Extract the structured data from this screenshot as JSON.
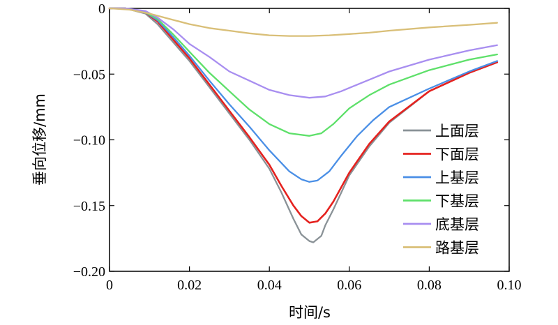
{
  "chart_data": {
    "type": "line",
    "title": "",
    "xlabel": "时间/s",
    "ylabel": "垂向位移/mm",
    "xlim": [
      0,
      0.1
    ],
    "ylim": [
      -0.2,
      0
    ],
    "xticks": [
      0,
      0.02,
      0.04,
      0.06,
      0.08,
      0.1
    ],
    "xtick_labels": [
      "0",
      "0.02",
      "0.04",
      "0.06",
      "0.08",
      "0.10"
    ],
    "yticks": [
      0,
      -0.05,
      -0.1,
      -0.15,
      -0.2
    ],
    "ytick_labels": [
      "0",
      "−0.05",
      "−0.10",
      "−0.15",
      "−0.20"
    ],
    "grid": false,
    "legend_position": "right",
    "series": [
      {
        "name": "上面层",
        "color": "#8a9297",
        "x": [
          0,
          0.004,
          0.009,
          0.012,
          0.016,
          0.02,
          0.025,
          0.03,
          0.035,
          0.04,
          0.043,
          0.046,
          0.048,
          0.05,
          0.051,
          0.053,
          0.054,
          0.056,
          0.06,
          0.065,
          0.07,
          0.08,
          0.09,
          0.097
        ],
        "y": [
          0,
          0,
          -0.004,
          -0.012,
          -0.026,
          -0.04,
          -0.06,
          -0.08,
          -0.1,
          -0.122,
          -0.14,
          -0.16,
          -0.172,
          -0.177,
          -0.178,
          -0.173,
          -0.165,
          -0.153,
          -0.127,
          -0.105,
          -0.087,
          -0.063,
          -0.049,
          -0.041
        ]
      },
      {
        "name": "下面层",
        "color": "#e5221f",
        "x": [
          0,
          0.004,
          0.009,
          0.012,
          0.016,
          0.02,
          0.025,
          0.03,
          0.035,
          0.04,
          0.043,
          0.046,
          0.048,
          0.05,
          0.052,
          0.054,
          0.056,
          0.06,
          0.065,
          0.07,
          0.08,
          0.09,
          0.097
        ],
        "y": [
          0,
          0,
          -0.003,
          -0.01,
          -0.024,
          -0.038,
          -0.058,
          -0.078,
          -0.098,
          -0.119,
          -0.135,
          -0.15,
          -0.158,
          -0.163,
          -0.162,
          -0.156,
          -0.147,
          -0.125,
          -0.103,
          -0.086,
          -0.063,
          -0.049,
          -0.041
        ]
      },
      {
        "name": "上基层",
        "color": "#4a8fe6",
        "x": [
          0,
          0.004,
          0.009,
          0.012,
          0.016,
          0.02,
          0.025,
          0.03,
          0.035,
          0.04,
          0.045,
          0.048,
          0.05,
          0.052,
          0.055,
          0.058,
          0.062,
          0.066,
          0.07,
          0.08,
          0.09,
          0.097
        ],
        "y": [
          0,
          0,
          -0.003,
          -0.009,
          -0.022,
          -0.036,
          -0.055,
          -0.073,
          -0.09,
          -0.108,
          -0.124,
          -0.13,
          -0.132,
          -0.131,
          -0.124,
          -0.112,
          -0.097,
          -0.085,
          -0.075,
          -0.061,
          -0.048,
          -0.04
        ]
      },
      {
        "name": "下基层",
        "color": "#5ee06a",
        "x": [
          0,
          0.004,
          0.009,
          0.012,
          0.016,
          0.02,
          0.025,
          0.03,
          0.035,
          0.04,
          0.045,
          0.05,
          0.053,
          0.056,
          0.06,
          0.065,
          0.07,
          0.08,
          0.09,
          0.097
        ],
        "y": [
          0,
          0,
          -0.003,
          -0.008,
          -0.02,
          -0.033,
          -0.049,
          -0.063,
          -0.077,
          -0.088,
          -0.095,
          -0.097,
          -0.095,
          -0.088,
          -0.076,
          -0.066,
          -0.058,
          -0.047,
          -0.039,
          -0.035
        ]
      },
      {
        "name": "底基层",
        "color": "#a88ef0",
        "x": [
          0,
          0.004,
          0.009,
          0.012,
          0.016,
          0.02,
          0.025,
          0.03,
          0.035,
          0.04,
          0.045,
          0.05,
          0.054,
          0.058,
          0.062,
          0.066,
          0.07,
          0.08,
          0.09,
          0.097
        ],
        "y": [
          0,
          0,
          -0.002,
          -0.007,
          -0.016,
          -0.027,
          -0.037,
          -0.048,
          -0.055,
          -0.062,
          -0.066,
          -0.068,
          -0.067,
          -0.063,
          -0.058,
          -0.053,
          -0.048,
          -0.039,
          -0.032,
          -0.028
        ]
      },
      {
        "name": "路基层",
        "color": "#d9bf78",
        "x": [
          0,
          0.005,
          0.01,
          0.015,
          0.02,
          0.025,
          0.03,
          0.035,
          0.04,
          0.045,
          0.05,
          0.055,
          0.06,
          0.065,
          0.07,
          0.08,
          0.09,
          0.097
        ],
        "y": [
          0,
          -0.001,
          -0.004,
          -0.008,
          -0.012,
          -0.015,
          -0.017,
          -0.019,
          -0.0205,
          -0.021,
          -0.021,
          -0.0205,
          -0.0195,
          -0.0185,
          -0.017,
          -0.0145,
          -0.0125,
          -0.011
        ]
      }
    ]
  }
}
